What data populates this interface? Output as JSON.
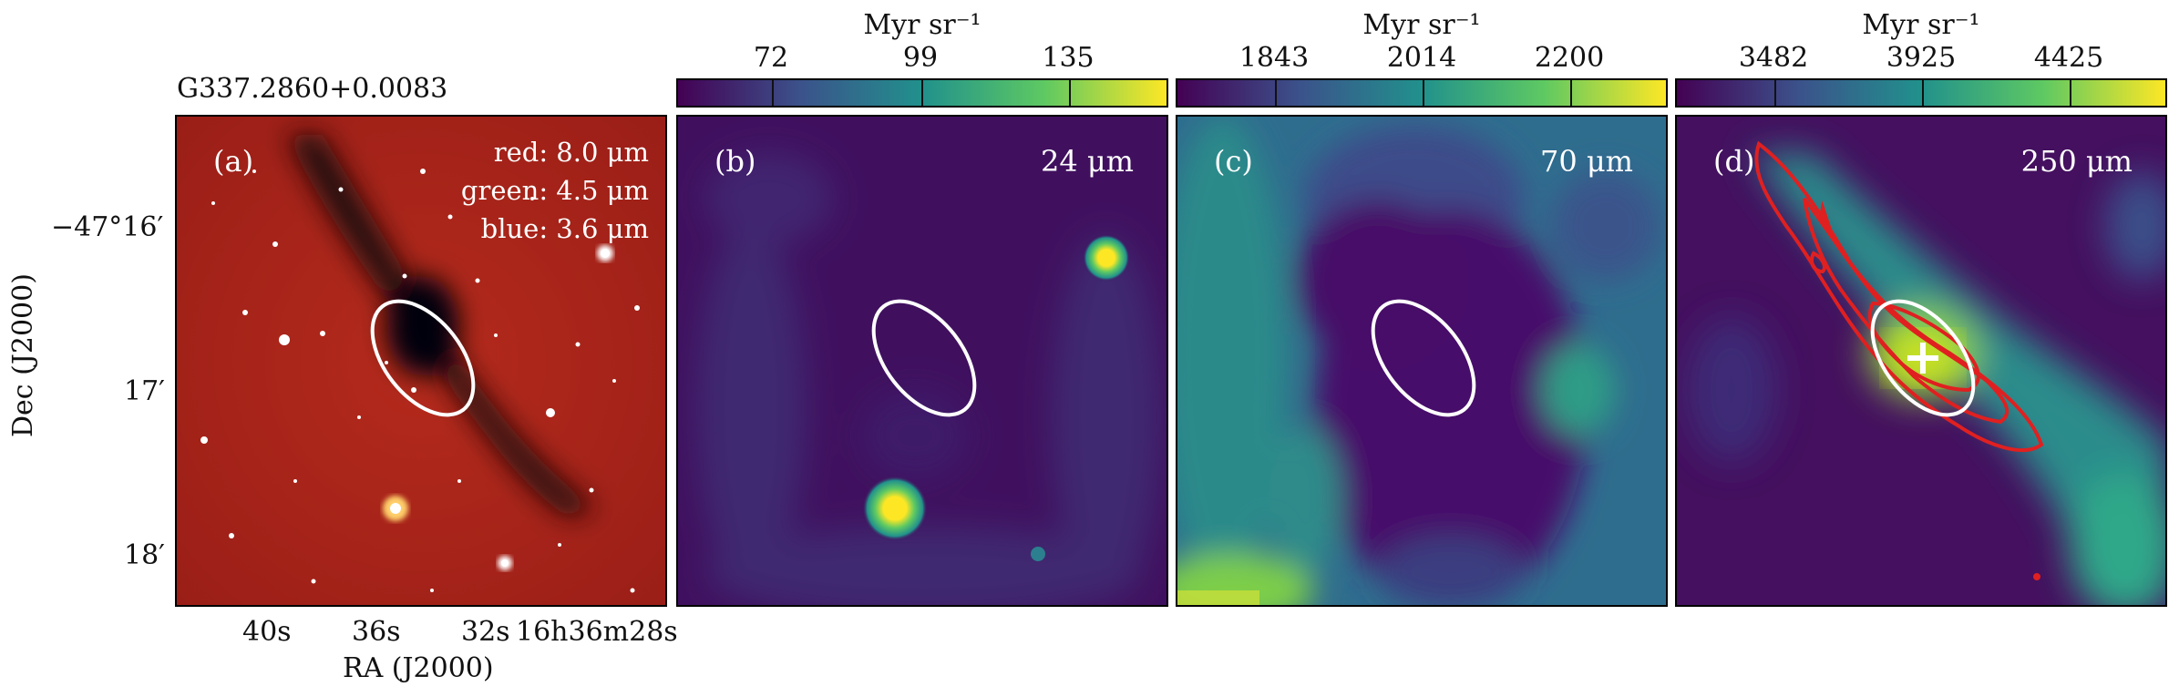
{
  "source_name": "G337.2860+0.0083",
  "axes": {
    "xlabel": "RA (J2000)",
    "ylabel": "Dec (J2000)",
    "x_ticks": [
      "40s",
      "36s",
      "32s",
      "16h36m28s"
    ],
    "y_ticks": [
      "−47°16′",
      "17′",
      "18′"
    ]
  },
  "panels": [
    {
      "id": "a",
      "label": "(a)",
      "rgb_lines": [
        "red: 8.0 μm",
        "green: 4.5 μm",
        "blue: 3.6 μm"
      ]
    },
    {
      "id": "b",
      "label": "(b)",
      "wavelength": "24 μm",
      "colorbar": {
        "unit": "Myr sr⁻¹",
        "ticks": [
          "72",
          "99",
          "135"
        ]
      }
    },
    {
      "id": "c",
      "label": "(c)",
      "wavelength": "70 μm",
      "colorbar": {
        "unit": "Myr sr⁻¹",
        "ticks": [
          "1843",
          "2014",
          "2200"
        ]
      }
    },
    {
      "id": "d",
      "label": "(d)",
      "wavelength": "250 μm",
      "colorbar": {
        "unit": "Myr sr⁻¹",
        "ticks": [
          "3482",
          "3925",
          "4425"
        ]
      }
    }
  ],
  "colors": {
    "viridis_low": "#440154",
    "viridis_mid": "#21918c",
    "viridis_high": "#fde725",
    "contour": "#e02020",
    "ellipse": "#ffffff"
  }
}
